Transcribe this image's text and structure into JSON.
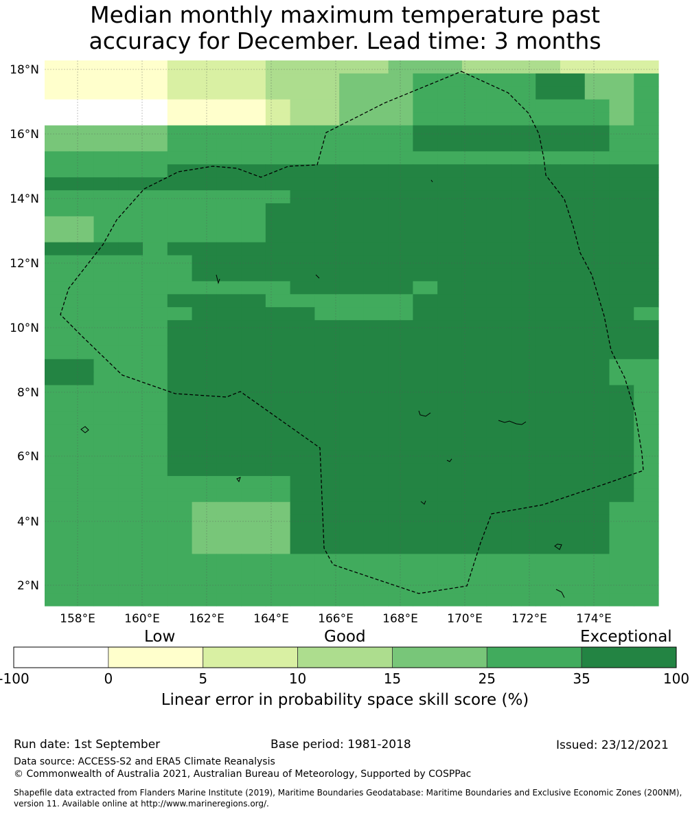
{
  "title_line1": "Median monthly maximum temperature past",
  "title_line2": "accuracy for December. Lead time: 3 months",
  "map": {
    "lat_labels": [
      "18°N",
      "16°N",
      "14°N",
      "12°N",
      "10°N",
      "8°N",
      "6°N",
      "4°N",
      "2°N"
    ],
    "lon_labels": [
      "158°E",
      "160°E",
      "162°E",
      "164°E",
      "166°E",
      "168°E",
      "170°E",
      "172°E",
      "174°E"
    ],
    "grid_rows": [
      "1111122223333344433332222",
      "1111122223334445555566445",
      "1111122223334445555566445",
      "0000011112334445555555545",
      "0000011112334445555555545",
      "4444455555555556666666655",
      "4444455555555556666666655",
      "5555555555555555555555555",
      "5555566666666666666666666",
      "6666666666666666666666666",
      "5555555555666666666666666",
      "5555555556666666666666666",
      "4455555556666666666666666",
      "4455555556666666666666666",
      "6666566666666666666666666",
      "5555556666666666666666666",
      "5555556666666666666666666",
      "5555555555666665666666666",
      "5555566665555556666666666",
      "5555556666655556666666665",
      "5555566666666666666666666",
      "5555566666666666666666666",
      "5555566666666666666666666",
      "6655566666666666666666655",
      "6655566666666666666666655",
      "5555566666666666666666665",
      "5555566666666666666666665",
      "5555566666666666666666665",
      "5555566666666666666666665",
      "5555566666666666666666665",
      "5555566666666666666666665",
      "5555566666666666666666665",
      "5555555555666666666666665",
      "5555555555666666666666665",
      "5555554444666666666666655",
      "5555554444666666666666655",
      "5555554444666666666666655",
      "5555554444666666666666655",
      "5555555555555555555555555",
      "5555555555555555555555555",
      "5555555555555555555555555",
      "5555555555555555555555555"
    ],
    "legend_colors": [
      "#ffffff",
      "#ffffcc",
      "#d9f0a3",
      "#addd8e",
      "#78c679",
      "#41ab5d",
      "#238443"
    ]
  },
  "colorbar": {
    "categories": [
      "Low",
      "Good",
      "Exceptional"
    ],
    "ticks": [
      "-100",
      "0",
      "5",
      "10",
      "15",
      "25",
      "35",
      "100"
    ],
    "title": "Linear error in probability space skill score (%)"
  },
  "footer": {
    "run_date": "Run date: 1st September",
    "base_period": "Base period: 1981-2018",
    "issued": "Issued: 23/12/2021",
    "data_source": "Data source: ACCESS-S2 and ERA5 Climate Reanalysis",
    "copyright": "© Commonwealth of Australia 2021, Australian Bureau of Meteorology, Supported by COSPPac",
    "shapefile_line1": "Shapefile data extracted from Flanders Marine Institute (2019), Maritime Boundaries Geodatabase: Maritime Boundaries and Exclusive Economic Zones (200NM),",
    "shapefile_line2": "version 11. Available online at http://www.marineregions.org/."
  }
}
